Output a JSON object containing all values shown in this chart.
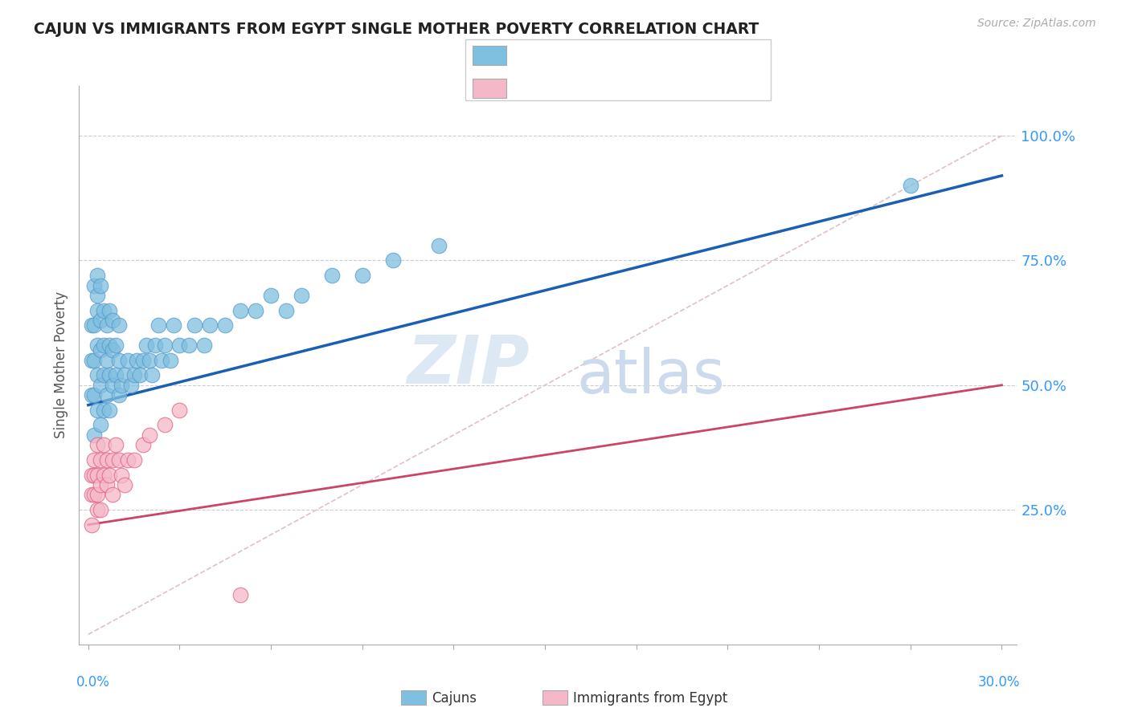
{
  "title": "CAJUN VS IMMIGRANTS FROM EGYPT SINGLE MOTHER POVERTY CORRELATION CHART",
  "source": "Source: ZipAtlas.com",
  "ylabel": "Single Mother Poverty",
  "y_tick_labels": [
    "25.0%",
    "50.0%",
    "75.0%",
    "100.0%"
  ],
  "y_ticks": [
    0.25,
    0.5,
    0.75,
    1.0
  ],
  "cajun_color": "#7fbfdf",
  "cajun_edge_color": "#5599cc",
  "egypt_color": "#f5b8c8",
  "egypt_edge_color": "#e06080",
  "cajun_line_color": "#1a5fb4",
  "egypt_line_color": "#cc4466",
  "diagonal_color": "#e0c0c8",
  "watermark_zip_color": "#dde8f5",
  "watermark_atlas_color": "#ccdaee",
  "legend_text_color": "#3399ff",
  "cajun_x": [
    0.001,
    0.001,
    0.001,
    0.002,
    0.002,
    0.002,
    0.002,
    0.002,
    0.003,
    0.003,
    0.003,
    0.003,
    0.003,
    0.003,
    0.004,
    0.004,
    0.004,
    0.004,
    0.004,
    0.005,
    0.005,
    0.005,
    0.005,
    0.006,
    0.006,
    0.006,
    0.007,
    0.007,
    0.007,
    0.007,
    0.008,
    0.008,
    0.008,
    0.009,
    0.009,
    0.01,
    0.01,
    0.01,
    0.011,
    0.012,
    0.013,
    0.014,
    0.015,
    0.016,
    0.017,
    0.018,
    0.019,
    0.02,
    0.021,
    0.022,
    0.023,
    0.024,
    0.025,
    0.027,
    0.028,
    0.03,
    0.033,
    0.035,
    0.038,
    0.04,
    0.045,
    0.05,
    0.055,
    0.06,
    0.065,
    0.07,
    0.08,
    0.09,
    0.1,
    0.115,
    0.27
  ],
  "cajun_y": [
    0.48,
    0.55,
    0.62,
    0.4,
    0.48,
    0.55,
    0.62,
    0.7,
    0.45,
    0.52,
    0.58,
    0.65,
    0.72,
    0.68,
    0.42,
    0.5,
    0.57,
    0.63,
    0.7,
    0.45,
    0.52,
    0.58,
    0.65,
    0.48,
    0.55,
    0.62,
    0.45,
    0.52,
    0.58,
    0.65,
    0.5,
    0.57,
    0.63,
    0.52,
    0.58,
    0.48,
    0.55,
    0.62,
    0.5,
    0.52,
    0.55,
    0.5,
    0.52,
    0.55,
    0.52,
    0.55,
    0.58,
    0.55,
    0.52,
    0.58,
    0.62,
    0.55,
    0.58,
    0.55,
    0.62,
    0.58,
    0.58,
    0.62,
    0.58,
    0.62,
    0.62,
    0.65,
    0.65,
    0.68,
    0.65,
    0.68,
    0.72,
    0.72,
    0.75,
    0.78,
    0.9
  ],
  "egypt_x": [
    0.001,
    0.001,
    0.001,
    0.002,
    0.002,
    0.002,
    0.003,
    0.003,
    0.003,
    0.003,
    0.004,
    0.004,
    0.004,
    0.005,
    0.005,
    0.006,
    0.006,
    0.007,
    0.008,
    0.008,
    0.009,
    0.01,
    0.011,
    0.012,
    0.013,
    0.015,
    0.018,
    0.02,
    0.025,
    0.03,
    0.05
  ],
  "egypt_y": [
    0.32,
    0.28,
    0.22,
    0.35,
    0.28,
    0.32,
    0.38,
    0.32,
    0.28,
    0.25,
    0.35,
    0.3,
    0.25,
    0.38,
    0.32,
    0.35,
    0.3,
    0.32,
    0.35,
    0.28,
    0.38,
    0.35,
    0.32,
    0.3,
    0.35,
    0.35,
    0.38,
    0.4,
    0.42,
    0.45,
    0.08
  ],
  "xlim": [
    -0.003,
    0.305
  ],
  "ylim": [
    -0.02,
    1.1
  ],
  "x_tick_positions": [
    0.0,
    0.03,
    0.06,
    0.09,
    0.12,
    0.15,
    0.18,
    0.21,
    0.24,
    0.27,
    0.3
  ]
}
